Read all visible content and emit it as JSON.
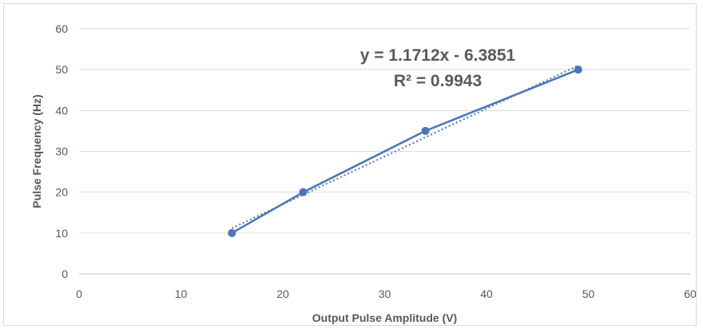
{
  "chart_data": {
    "type": "scatter",
    "xlabel": "Output Pulse Amplitude (V)",
    "ylabel": "Pulse Frequency (Hz)",
    "xlim": [
      0,
      60
    ],
    "ylim": [
      0,
      60
    ],
    "x_ticks": [
      0,
      10,
      20,
      30,
      40,
      50,
      60
    ],
    "y_ticks": [
      0,
      10,
      20,
      30,
      40,
      50,
      60
    ],
    "x_tick_labels": [
      "0",
      "10",
      "20",
      "30",
      "40",
      "50",
      "60"
    ],
    "y_tick_labels": [
      "0",
      "10",
      "20",
      "30",
      "40",
      "50",
      "60"
    ],
    "grid": "horizontal",
    "legend": "none",
    "series": [
      {
        "x": [
          15,
          22,
          34,
          49
        ],
        "y": [
          10,
          20,
          35,
          50
        ],
        "style": "line-with-markers",
        "color": "#4a76b8"
      }
    ],
    "trendline": {
      "type": "linear",
      "slope": 1.1712,
      "intercept": -6.3851,
      "x_range": [
        15,
        49
      ],
      "style": "dotted",
      "color": "#4a76b8"
    },
    "annotations": {
      "equation": "y = 1.1712x - 6.3851",
      "r_squared": "R² = 0.9943"
    }
  }
}
